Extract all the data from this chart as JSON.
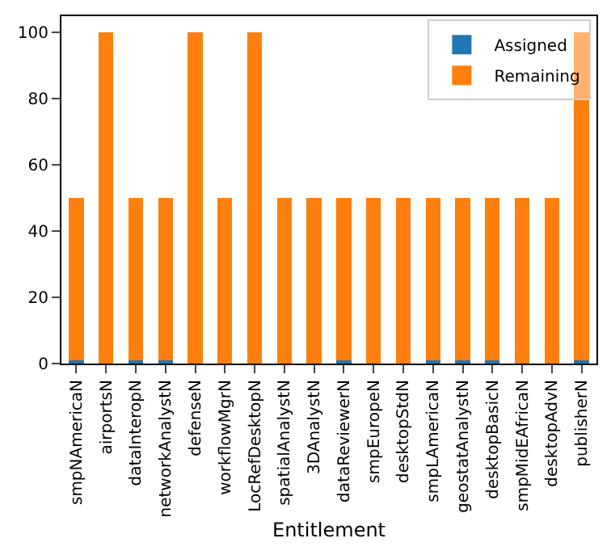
{
  "chart_data": {
    "type": "bar",
    "stacked": true,
    "xlabel": "Entitlement",
    "categories": [
      "smpNAmericaN",
      "airportsN",
      "dataInteropN",
      "networkAnalystN",
      "defenseN",
      "workflowMgrN",
      "LocRefDesktopN",
      "spatialAnalystN",
      "3DAnalystN",
      "dataReviewerN",
      "smpEuropeN",
      "desktopStdN",
      "smpLAmericaN",
      "geostatAnalystN",
      "desktopBasicN",
      "smpMidEAfricaN",
      "desktopAdvN",
      "publisherN"
    ],
    "series": [
      {
        "name": "Assigned",
        "color": "#1f77b4",
        "values": [
          1,
          0,
          1,
          1,
          0,
          0,
          0,
          0,
          0,
          1,
          0,
          0,
          1,
          1,
          1,
          0,
          0,
          1
        ]
      },
      {
        "name": "Remaining",
        "color": "#ff7f0e",
        "values": [
          49,
          100,
          49,
          49,
          100,
          50,
          100,
          50,
          50,
          49,
          50,
          50,
          49,
          49,
          49,
          50,
          50,
          99
        ]
      }
    ],
    "ylim": [
      0,
      105
    ],
    "yticks": [
      0,
      20,
      40,
      60,
      80,
      100
    ],
    "legend": "top right"
  }
}
